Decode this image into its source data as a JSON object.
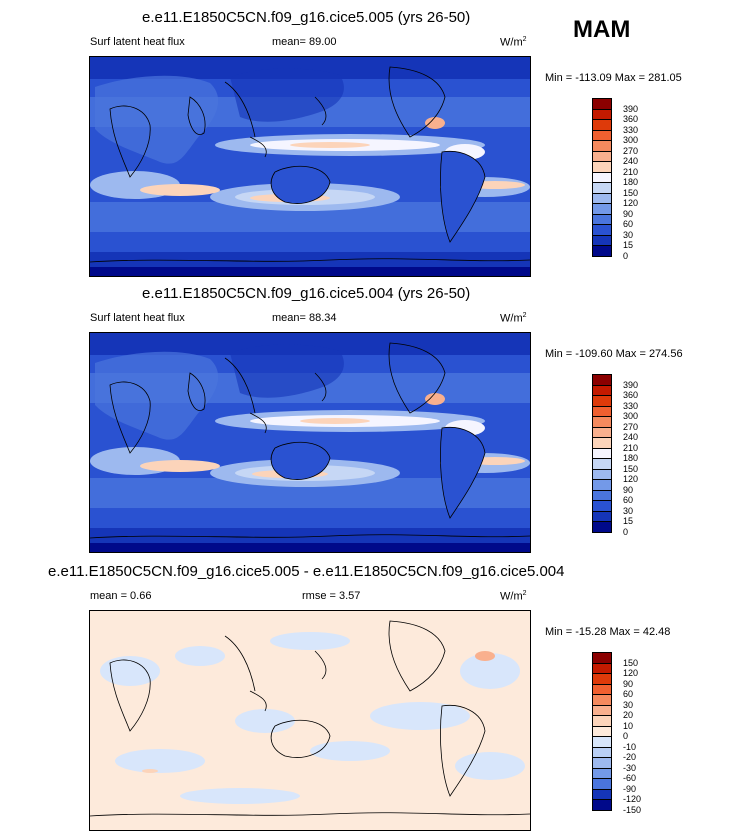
{
  "season": "MAM",
  "panels": [
    {
      "title": "e.e11.E1850C5CN.f09_g16.cice5.005 (yrs 26-50)",
      "left_label": "Surf latent heat flux",
      "mean_text": "mean=  89.00",
      "units": "W/m",
      "units_sup": "2",
      "minmax": "Min = -113.09 Max = 281.05",
      "levels": [
        "390",
        "360",
        "330",
        "300",
        "270",
        "240",
        "210",
        "180",
        "150",
        "120",
        "90",
        "60",
        "30",
        "15",
        "0"
      ],
      "colors": [
        "#8b0000",
        "#c41a00",
        "#de3a0a",
        "#f06030",
        "#f58a5e",
        "#f9b08e",
        "#fcd4ba",
        "#f5f5ff",
        "#c6d7f5",
        "#9db9ef",
        "#7399e8",
        "#4a75dd",
        "#2a52d1",
        "#1535b8",
        "#00098a"
      ]
    },
    {
      "title": "e.e11.E1850C5CN.f09_g16.cice5.004 (yrs 26-50)",
      "left_label": "Surf latent heat flux",
      "mean_text": "mean=  88.34",
      "units": "W/m",
      "units_sup": "2",
      "minmax": "Min = -109.60 Max = 274.56",
      "levels": [
        "390",
        "360",
        "330",
        "300",
        "270",
        "240",
        "210",
        "180",
        "150",
        "120",
        "90",
        "60",
        "30",
        "15",
        "0"
      ],
      "colors": [
        "#8b0000",
        "#c41a00",
        "#de3a0a",
        "#f06030",
        "#f58a5e",
        "#f9b08e",
        "#fcd4ba",
        "#f5f5ff",
        "#c6d7f5",
        "#9db9ef",
        "#7399e8",
        "#4a75dd",
        "#2a52d1",
        "#1535b8",
        "#00098a"
      ]
    },
    {
      "title": "e.e11.E1850C5CN.f09_g16.cice5.005 - e.e11.E1850C5CN.f09_g16.cice5.004",
      "left_label": "mean =   0.66",
      "mean_text": "rmse =   3.57",
      "units": "W/m",
      "units_sup": "2",
      "minmax": "Min = -15.28 Max =  42.48",
      "levels": [
        "150",
        "120",
        "90",
        "60",
        "30",
        "20",
        "10",
        "0",
        "-10",
        "-20",
        "-30",
        "-60",
        "-90",
        "-120",
        "-150"
      ],
      "colors": [
        "#8b0000",
        "#c41a00",
        "#de3a0a",
        "#f06030",
        "#f58a5e",
        "#f9b08e",
        "#fcd4ba",
        "#fdeadb",
        "#d8e6fb",
        "#b9cff5",
        "#9db9ef",
        "#7399e8",
        "#4a75dd",
        "#1535b8",
        "#00098a"
      ]
    }
  ],
  "chart_data": {
    "type": "heatmap",
    "title": "MAM",
    "maps": [
      {
        "name": "e.e11.E1850C5CN.f09_g16.cice5.005 (yrs 26-50)",
        "variable": "Surf latent heat flux",
        "mean": 89.0,
        "min": -113.09,
        "max": 281.05,
        "units": "W/m2",
        "contour_levels": [
          0,
          15,
          30,
          60,
          90,
          120,
          150,
          180,
          210,
          240,
          270,
          300,
          330,
          360,
          390
        ]
      },
      {
        "name": "e.e11.E1850C5CN.f09_g16.cice5.004 (yrs 26-50)",
        "variable": "Surf latent heat flux",
        "mean": 88.34,
        "min": -109.6,
        "max": 274.56,
        "units": "W/m2",
        "contour_levels": [
          0,
          15,
          30,
          60,
          90,
          120,
          150,
          180,
          210,
          240,
          270,
          300,
          330,
          360,
          390
        ]
      },
      {
        "name": "e.e11.E1850C5CN.f09_g16.cice5.005 - e.e11.E1850C5CN.f09_g16.cice5.004",
        "mean": 0.66,
        "rmse": 3.57,
        "min": -15.28,
        "max": 42.48,
        "units": "W/m2",
        "contour_levels": [
          -150,
          -120,
          -90,
          -60,
          -30,
          -20,
          -10,
          0,
          10,
          20,
          30,
          60,
          90,
          120,
          150
        ]
      }
    ]
  }
}
